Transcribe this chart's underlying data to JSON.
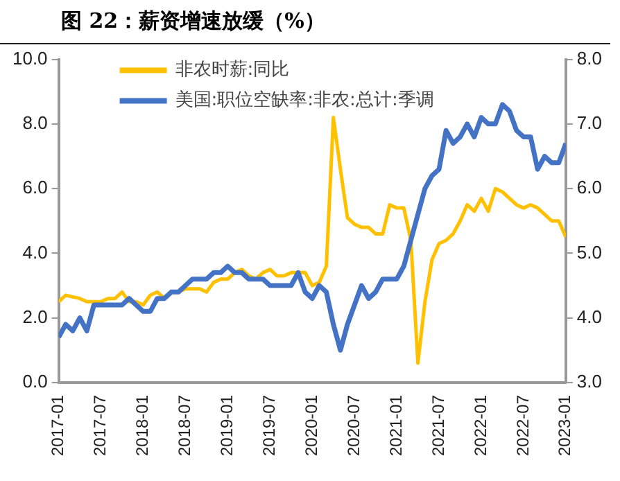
{
  "chart_data": {
    "type": "line",
    "title": "图 22：薪资增速放缓（%）",
    "x": [
      "2017-01",
      "2017-02",
      "2017-03",
      "2017-04",
      "2017-05",
      "2017-06",
      "2017-07",
      "2017-08",
      "2017-09",
      "2017-10",
      "2017-11",
      "2017-12",
      "2018-01",
      "2018-02",
      "2018-03",
      "2018-04",
      "2018-05",
      "2018-06",
      "2018-07",
      "2018-08",
      "2018-09",
      "2018-10",
      "2018-11",
      "2018-12",
      "2019-01",
      "2019-02",
      "2019-03",
      "2019-04",
      "2019-05",
      "2019-06",
      "2019-07",
      "2019-08",
      "2019-09",
      "2019-10",
      "2019-11",
      "2019-12",
      "2020-01",
      "2020-02",
      "2020-03",
      "2020-04",
      "2020-05",
      "2020-06",
      "2020-07",
      "2020-08",
      "2020-09",
      "2020-10",
      "2020-11",
      "2020-12",
      "2021-01",
      "2021-02",
      "2021-03",
      "2021-04",
      "2021-05",
      "2021-06",
      "2021-07",
      "2021-08",
      "2021-09",
      "2021-10",
      "2021-11",
      "2021-12",
      "2022-01",
      "2022-02",
      "2022-03",
      "2022-04",
      "2022-05",
      "2022-06",
      "2022-07",
      "2022-08",
      "2022-09",
      "2022-10",
      "2022-11",
      "2022-12",
      "2023-01"
    ],
    "series": [
      {
        "name": "非农时薪:同比",
        "color": "#ffc000",
        "values": [
          2.5,
          2.7,
          2.65,
          2.6,
          2.5,
          2.5,
          2.5,
          2.6,
          2.6,
          2.8,
          2.5,
          2.5,
          2.4,
          2.7,
          2.8,
          2.6,
          2.8,
          2.8,
          2.9,
          2.9,
          2.9,
          2.8,
          3.1,
          3.2,
          3.2,
          3.4,
          3.5,
          3.3,
          3.2,
          3.4,
          3.5,
          3.3,
          3.3,
          3.4,
          3.4,
          3.4,
          3.0,
          3.1,
          3.6,
          8.2,
          6.6,
          5.1,
          4.9,
          4.8,
          4.8,
          4.6,
          4.6,
          5.5,
          5.4,
          5.4,
          4.4,
          0.6,
          2.5,
          3.8,
          4.3,
          4.4,
          4.6,
          5.0,
          5.5,
          5.3,
          5.7,
          5.3,
          6.0,
          5.9,
          5.7,
          5.5,
          5.4,
          5.5,
          5.4,
          5.2,
          5.0,
          5.0,
          4.5
        ]
      },
      {
        "name": "美国:职位空缺率:非农:总计:季调",
        "color": "#4472c4",
        "axis": "y2",
        "values": [
          3.7,
          3.9,
          3.8,
          4.0,
          3.8,
          4.2,
          4.2,
          4.2,
          4.2,
          4.2,
          4.3,
          4.2,
          4.1,
          4.1,
          4.3,
          4.3,
          4.4,
          4.4,
          4.5,
          4.6,
          4.6,
          4.6,
          4.7,
          4.7,
          4.8,
          4.7,
          4.7,
          4.6,
          4.6,
          4.6,
          4.5,
          4.5,
          4.5,
          4.5,
          4.7,
          4.4,
          4.3,
          4.5,
          4.4,
          3.9,
          3.5,
          3.9,
          4.2,
          4.5,
          4.3,
          4.4,
          4.6,
          4.6,
          4.6,
          4.8,
          5.2,
          5.6,
          6.0,
          6.2,
          6.3,
          6.9,
          6.7,
          6.8,
          7.0,
          6.8,
          7.1,
          7.0,
          7.0,
          7.3,
          7.2,
          6.9,
          6.8,
          6.8,
          6.3,
          6.5,
          6.4,
          6.4,
          6.7
        ]
      }
    ],
    "xlim": [
      "2017-01",
      "2023-01"
    ],
    "xticks": [
      "2017-01",
      "2017-07",
      "2018-01",
      "2018-07",
      "2019-01",
      "2019-07",
      "2020-01",
      "2020-07",
      "2021-01",
      "2021-07",
      "2022-01",
      "2022-07",
      "2023-01"
    ],
    "ylim": [
      0,
      10
    ],
    "yticks": [
      {
        "value": 0,
        "label": "0.0"
      },
      {
        "value": 2,
        "label": "2.0"
      },
      {
        "value": 4,
        "label": "4.0"
      },
      {
        "value": 6,
        "label": "6.0"
      },
      {
        "value": 8,
        "label": "8.0"
      },
      {
        "value": 10,
        "label": "10.0"
      }
    ],
    "y2lim": [
      3,
      8
    ],
    "y2ticks": [
      {
        "value": 3,
        "label": "3.0"
      },
      {
        "value": 4,
        "label": "4.0"
      },
      {
        "value": 5,
        "label": "5.0"
      },
      {
        "value": 6,
        "label": "6.0"
      },
      {
        "value": 7,
        "label": "7.0"
      },
      {
        "value": 8,
        "label": "8.0"
      }
    ],
    "legend": "top left",
    "grid": false,
    "marker": "none",
    "line_style": "solid"
  }
}
